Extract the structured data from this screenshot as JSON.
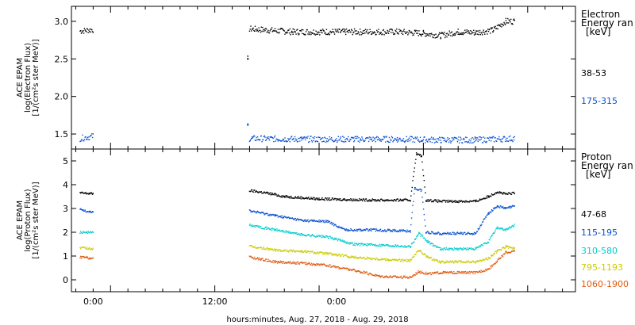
{
  "figure": {
    "xaxis_title": "hours:minutes, Aug. 27, 2018 - Aug. 29, 2018",
    "x_tick_labels": [
      "0:00",
      "12:00",
      "0:00"
    ]
  },
  "chart_data": [
    {
      "type": "scatter",
      "panel": "electron",
      "ylabel_lines": [
        "ACE EPAM",
        "log(Electron Flux)",
        "[1/(cm²s ster MeV)]"
      ],
      "ylim": [
        1.3,
        3.2
      ],
      "yticks": [
        1.5,
        2.0,
        2.5,
        3.0
      ],
      "ytick_labels": [
        "1.5",
        "2.0",
        "2.5",
        "3.0"
      ],
      "xlim_hours": [
        -4.5,
        53.5
      ],
      "legend_title_lines": [
        "Electron",
        "Energy ran",
        "[keV]"
      ],
      "series": [
        {
          "name": "38-53",
          "color": "#000000",
          "segments": [
            {
              "x": [
                -3.5,
                -2.0
              ],
              "y": [
                2.87,
                2.89
              ]
            },
            {
              "x": [
                15.8,
                15.8
              ],
              "y": [
                2.5,
                2.5
              ]
            },
            {
              "x": [
                16.0,
                21.0,
                27.0,
                33.0,
                36.0,
                38.0,
                40.0,
                42.0,
                44.0,
                45.5,
                46.5
              ],
              "y": [
                2.9,
                2.86,
                2.86,
                2.86,
                2.84,
                2.81,
                2.86,
                2.85,
                2.88,
                3.0,
                3.0
              ]
            }
          ]
        },
        {
          "name": "175-315",
          "color": "#0a50d2",
          "segments": [
            {
              "x": [
                -3.5,
                -2.0
              ],
              "y": [
                1.44,
                1.47
              ]
            },
            {
              "x": [
                15.8,
                15.8
              ],
              "y": [
                1.62,
                1.62
              ]
            },
            {
              "x": [
                16.0,
                22.0,
                28.0,
                33.0,
                38.0,
                42.0,
                46.5
              ],
              "y": [
                1.44,
                1.43,
                1.43,
                1.43,
                1.42,
                1.42,
                1.44
              ]
            }
          ]
        }
      ]
    },
    {
      "type": "scatter",
      "panel": "proton",
      "ylabel_lines": [
        "ACE EPAM",
        "log(Proton Flux)",
        "[1/(cm²s ster MeV)]"
      ],
      "ylim": [
        -0.5,
        5.5
      ],
      "yticks": [
        0,
        1,
        2,
        3,
        4,
        5
      ],
      "ytick_labels": [
        "0",
        "1",
        "2",
        "3",
        "4",
        "5"
      ],
      "xlim_hours": [
        -4.5,
        53.5
      ],
      "legend_title_lines": [
        "Proton",
        "Energy ran",
        "[keV]"
      ],
      "series": [
        {
          "name": "47-68",
          "color": "#000000",
          "segments": [
            {
              "x": [
                -3.5,
                -2.0
              ],
              "y": [
                3.65,
                3.62
              ]
            },
            {
              "x": [
                16.0,
                18.0,
                20.0,
                24.0,
                30.0,
                34.5,
                35.2,
                35.8,
                36.3,
                38.0,
                42.0,
                43.5,
                44.5,
                45.5,
                46.5
              ],
              "y": [
                3.75,
                3.65,
                3.5,
                3.4,
                3.35,
                3.35,
                5.3,
                5.2,
                3.35,
                3.3,
                3.3,
                3.5,
                3.7,
                3.6,
                3.65
              ]
            }
          ]
        },
        {
          "name": "115-195",
          "color": "#0a50d2",
          "segments": [
            {
              "x": [
                -3.5,
                -2.0
              ],
              "y": [
                2.95,
                2.85
              ]
            },
            {
              "x": [
                16.0,
                19.0,
                22.0,
                25.0,
                27.0,
                30.0,
                34.5,
                35.0,
                35.8,
                36.3,
                38.0,
                42.0,
                43.5,
                44.5,
                45.5,
                46.5
              ],
              "y": [
                2.9,
                2.7,
                2.5,
                2.45,
                2.1,
                2.1,
                2.05,
                3.85,
                3.75,
                2.0,
                1.95,
                1.95,
                2.8,
                3.1,
                3.0,
                3.1
              ]
            }
          ]
        },
        {
          "name": "310-580",
          "color": "#00cccc",
          "segments": [
            {
              "x": [
                -3.5,
                -2.0
              ],
              "y": [
                2.0,
                2.0
              ]
            },
            {
              "x": [
                16.0,
                19.0,
                22.0,
                25.0,
                28.0,
                32.0,
                34.5,
                35.5,
                36.5,
                38.0,
                42.0,
                43.5,
                44.5,
                45.5,
                46.5
              ],
              "y": [
                2.3,
                2.1,
                1.9,
                1.8,
                1.5,
                1.45,
                1.4,
                1.95,
                1.6,
                1.3,
                1.3,
                1.6,
                2.2,
                2.1,
                2.3
              ]
            }
          ]
        },
        {
          "name": "795-1193",
          "color": "#cccc00",
          "segments": [
            {
              "x": [
                -3.5,
                -2.0
              ],
              "y": [
                1.35,
                1.3
              ]
            },
            {
              "x": [
                16.0,
                19.0,
                22.0,
                25.0,
                28.0,
                32.0,
                34.5,
                35.5,
                36.5,
                38.0,
                42.0,
                43.5,
                44.5,
                45.5,
                46.5
              ],
              "y": [
                1.4,
                1.25,
                1.2,
                1.1,
                0.95,
                0.85,
                0.8,
                1.25,
                0.95,
                0.75,
                0.75,
                0.9,
                1.2,
                1.4,
                1.3
              ]
            }
          ]
        },
        {
          "name": "1060-1900",
          "color": "#e05a10",
          "segments": [
            {
              "x": [
                -3.5,
                -2.0
              ],
              "y": [
                0.95,
                0.9
              ]
            },
            {
              "x": [
                16.0,
                19.0,
                22.0,
                25.0,
                28.0,
                31.0,
                34.5,
                35.5,
                36.5,
                38.0,
                42.0,
                43.5,
                44.5,
                45.5,
                46.5
              ],
              "y": [
                0.95,
                0.75,
                0.7,
                0.6,
                0.4,
                0.15,
                0.1,
                0.35,
                0.25,
                0.3,
                0.3,
                0.45,
                0.8,
                1.15,
                1.2
              ]
            }
          ]
        }
      ]
    }
  ]
}
